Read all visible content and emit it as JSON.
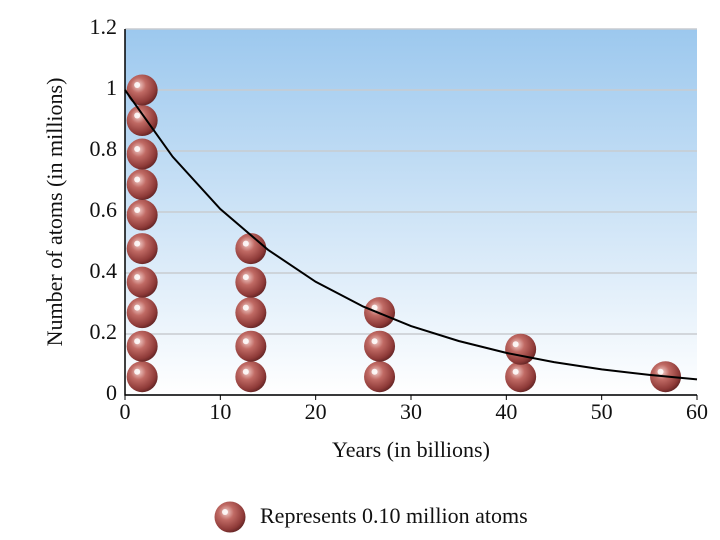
{
  "chart_data": {
    "type": "scatter",
    "xlabel": "Years (in billions)",
    "ylabel": "Number of atoms (in millions)",
    "xlim": [
      0,
      60
    ],
    "xticks": [
      0,
      10,
      20,
      30,
      40,
      50,
      60
    ],
    "ylim": [
      0,
      1.2
    ],
    "yticks": [
      0,
      0.2,
      0.4,
      0.6,
      0.8,
      1,
      1.2
    ],
    "grid": true,
    "series": [
      {
        "name": "Represents 0.10 million atoms",
        "color": "#a84848",
        "x": [
          1.8,
          1.8,
          1.8,
          1.8,
          1.8,
          1.8,
          1.8,
          1.8,
          1.8,
          1.8,
          13.2,
          13.2,
          13.2,
          13.2,
          13.2,
          26.7,
          26.7,
          26.7,
          41.5,
          41.5,
          56.7
        ],
        "values": [
          0.06,
          0.16,
          0.27,
          0.37,
          0.48,
          0.59,
          0.69,
          0.79,
          0.9,
          1.0,
          0.06,
          0.16,
          0.27,
          0.37,
          0.48,
          0.06,
          0.16,
          0.27,
          0.06,
          0.15,
          0.06
        ]
      }
    ],
    "curve": {
      "color": "#000000",
      "x": [
        0,
        5,
        10,
        15,
        20,
        25,
        30,
        35,
        40,
        45,
        50,
        55,
        60
      ],
      "values": [
        1.0,
        0.781,
        0.61,
        0.476,
        0.371,
        0.29,
        0.226,
        0.177,
        0.138,
        0.108,
        0.084,
        0.066,
        0.051
      ]
    },
    "legend": "bottom"
  }
}
